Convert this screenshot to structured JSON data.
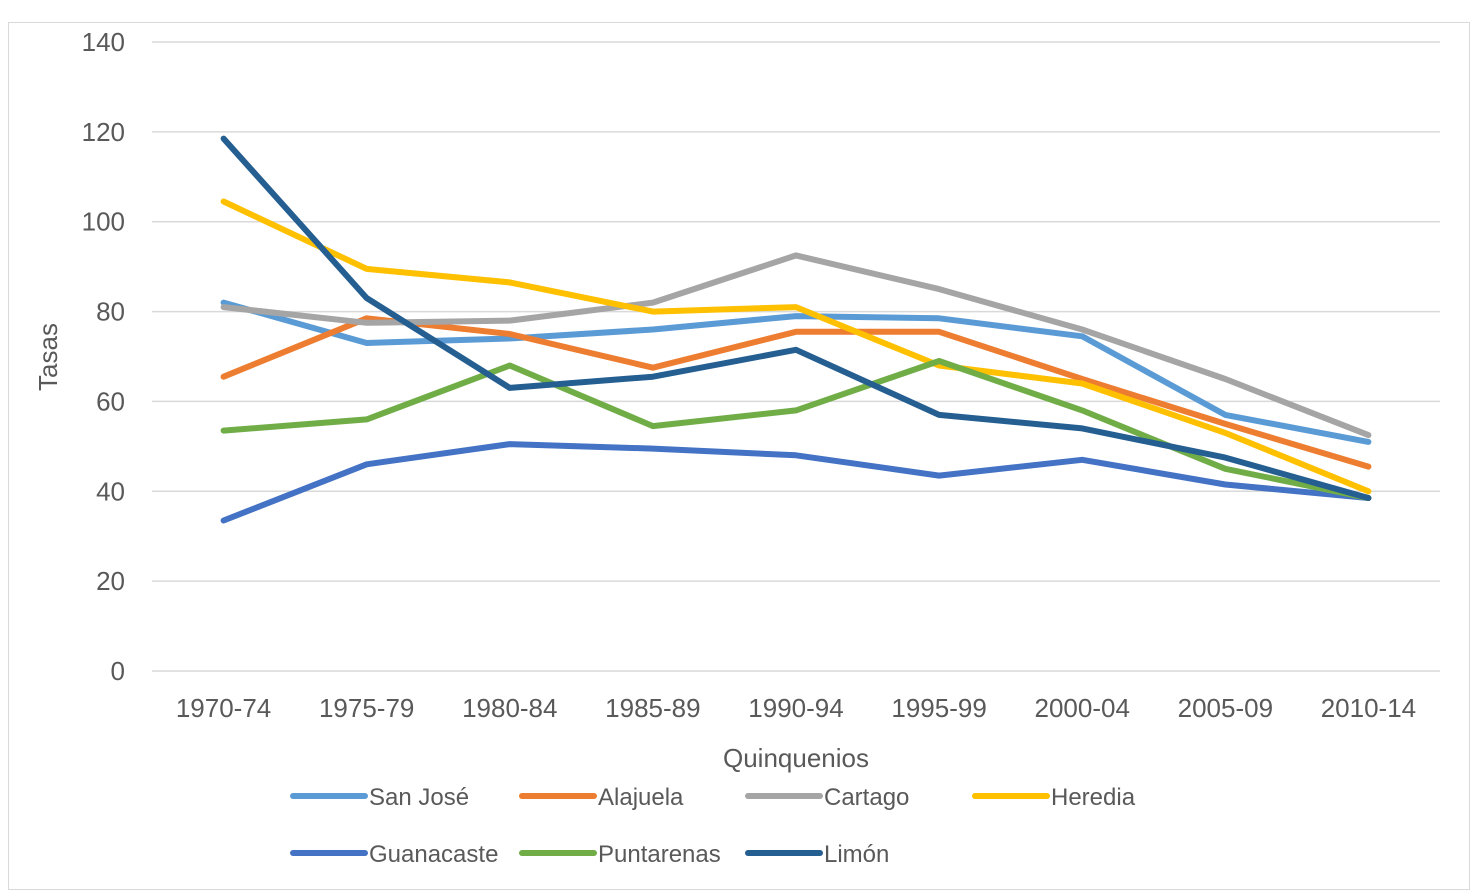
{
  "chart_data": {
    "type": "line",
    "title": "",
    "xlabel": "Quinquenios",
    "ylabel": "Tasas",
    "ylim": [
      0,
      140
    ],
    "yticks": [
      0,
      20,
      40,
      60,
      80,
      100,
      120,
      140
    ],
    "grid": true,
    "legend_position": "bottom",
    "categories": [
      "1970-74",
      "1975-79",
      "1980-84",
      "1985-89",
      "1990-94",
      "1995-99",
      "2000-04",
      "2005-09",
      "2010-14"
    ],
    "series": [
      {
        "name": "San José",
        "color": "#5B9BD5",
        "values": [
          82,
          73,
          74,
          76,
          79,
          78.5,
          74.5,
          57,
          51
        ]
      },
      {
        "name": "Alajuela",
        "color": "#ED7D31",
        "values": [
          65.5,
          78.5,
          75,
          67.5,
          75.5,
          75.5,
          65,
          55,
          45.5
        ]
      },
      {
        "name": "Cartago",
        "color": "#A5A5A5",
        "values": [
          81,
          77.5,
          78,
          82,
          92.5,
          85,
          76,
          65,
          52.5
        ]
      },
      {
        "name": "Heredia",
        "color": "#FFC000",
        "values": [
          104.5,
          89.5,
          86.5,
          80,
          81,
          68,
          64,
          53,
          40
        ]
      },
      {
        "name": "Guanacaste",
        "color": "#4472C4",
        "values": [
          33.5,
          46,
          50.5,
          49.5,
          48,
          43.5,
          47,
          41.5,
          38.5
        ]
      },
      {
        "name": "Puntarenas",
        "color": "#70AD47",
        "values": [
          53.5,
          56,
          68,
          54.5,
          58,
          69,
          58,
          45,
          38.5
        ]
      },
      {
        "name": "Limón",
        "color": "#255E91",
        "values": [
          118.5,
          83,
          63,
          65.5,
          71.5,
          57,
          54,
          47.5,
          38.5
        ]
      }
    ]
  }
}
